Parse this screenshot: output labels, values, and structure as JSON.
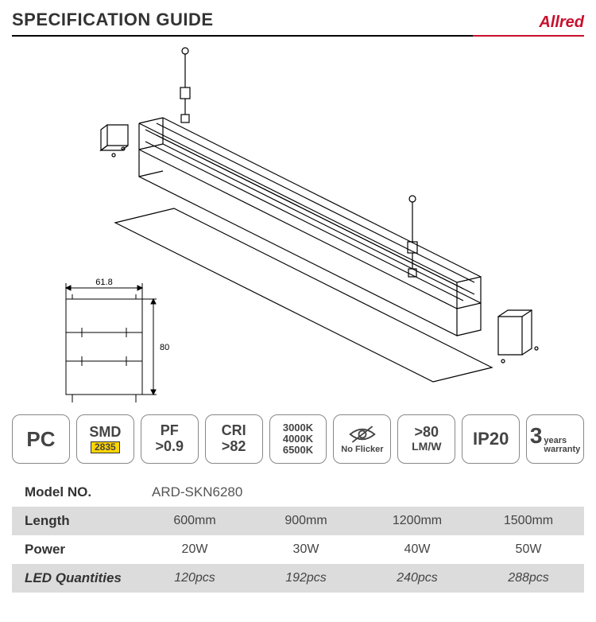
{
  "header": {
    "title": "SPECIFICATION GUIDE",
    "brand": "Allred",
    "brand_color": "#c8102e"
  },
  "diagram": {
    "profile_width_mm": "61.8",
    "profile_height_mm": "80"
  },
  "badges": {
    "pc": "PC",
    "smd_label": "SMD",
    "smd_chip": "2835",
    "pf_l1": "PF",
    "pf_l2": ">0.9",
    "cri_l1": "CRI",
    "cri_l2": ">82",
    "cct1": "3000K",
    "cct2": "4000K",
    "cct3": "6500K",
    "noflicker": "No Flicker",
    "eff_l1": ">80",
    "eff_l2": "LM/W",
    "ip": "IP20",
    "warranty_num": "3",
    "warranty_years": "years",
    "warranty_word": "warranty"
  },
  "spec": {
    "model_label": "Model NO.",
    "model_value": "ARD-SKN6280",
    "rows": [
      {
        "label": "Length",
        "cells": [
          "600mm",
          "900mm",
          "1200mm",
          "1500mm"
        ],
        "shade": true
      },
      {
        "label": "Power",
        "cells": [
          "20W",
          "30W",
          "40W",
          "50W"
        ],
        "shade": false
      },
      {
        "label": "LED Quantities",
        "cells": [
          "120pcs",
          "192pcs",
          "240pcs",
          "288pcs"
        ],
        "shade": true,
        "italic": true
      }
    ]
  }
}
